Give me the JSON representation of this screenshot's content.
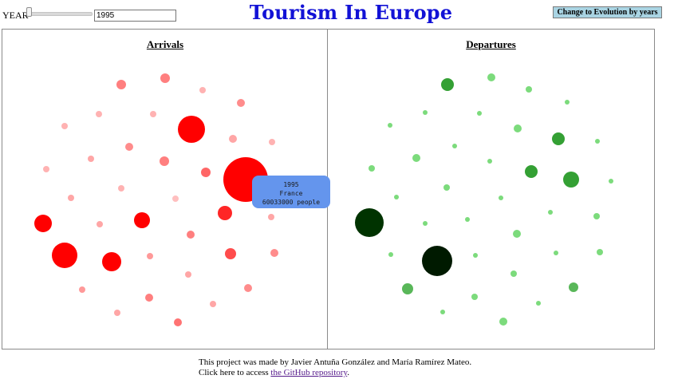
{
  "controls": {
    "year_label": "YEAR",
    "year_value": "1995",
    "slider": {
      "min_year": 1995,
      "max_year": 2019,
      "current_year": 1995
    },
    "mode_button_label": "Change to Evolution by years"
  },
  "title": "Tourism In Europe",
  "panels": {
    "arrivals": {
      "title": "Arrivals",
      "color": "#ff0000",
      "faint_color": "#f7b3b8"
    },
    "departures": {
      "title": "Departures",
      "color": "#008000",
      "faint_color": "#7ed87e"
    }
  },
  "tooltip": {
    "year": "1995",
    "country": "France",
    "value_text": "60033000 people"
  },
  "footer": {
    "line1": "This project was made by Javier Antuña González and María Ramírez Mateo.",
    "line2_prefix": "Click here to access",
    "link_text": "the GitHub repository",
    "line2_suffix": "."
  },
  "colors": {
    "title": "#1212d6",
    "tooltip_bg": "#6495ed",
    "button_bg": "#a9d4e3"
  }
}
